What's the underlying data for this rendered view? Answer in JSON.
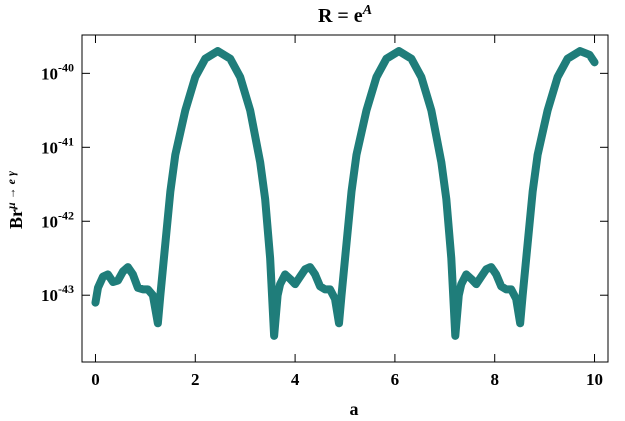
{
  "chart_data": {
    "type": "line",
    "title": "R = e",
    "title_superscript": "A",
    "x_label": "a",
    "y_label": "Br",
    "y_label_superscript": "μ → e γ",
    "color": "#1f7d7a",
    "log_y": true,
    "xlim": [
      -0.27,
      10.27
    ],
    "ylim": [
      1.25e-44,
      3.3e-40
    ],
    "xticks": [
      0,
      2,
      4,
      6,
      8,
      10
    ],
    "yticks": [
      {
        "value": 1e-43,
        "label": "10",
        "sup": "-43"
      },
      {
        "value": 1e-42,
        "label": "10",
        "sup": "-42"
      },
      {
        "value": 1e-41,
        "label": "10",
        "sup": "-41"
      },
      {
        "value": 1e-40,
        "label": "10",
        "sup": "-40"
      }
    ],
    "x": [
      0,
      0.05,
      0.15,
      0.25,
      0.35,
      0.45,
      0.55,
      0.65,
      0.75,
      0.85,
      0.95,
      1.05,
      1.15,
      1.25,
      1.3,
      1.4,
      1.5,
      1.6,
      1.8,
      2.0,
      2.2,
      2.45,
      2.7,
      2.9,
      3.1,
      3.3,
      3.4,
      3.5,
      3.58,
      3.65,
      3.7,
      3.8,
      3.9,
      4.0,
      4.1,
      4.2,
      4.3,
      4.4,
      4.5,
      4.6,
      4.7,
      4.8,
      4.88,
      4.93,
      5.03,
      5.13,
      5.23,
      5.43,
      5.63,
      5.83,
      6.08,
      6.33,
      6.53,
      6.73,
      6.93,
      7.03,
      7.13,
      7.21,
      7.28,
      7.33,
      7.43,
      7.53,
      7.63,
      7.73,
      7.83,
      7.93,
      8.03,
      8.13,
      8.23,
      8.33,
      8.43,
      8.51,
      8.56,
      8.66,
      8.76,
      8.86,
      9.06,
      9.26,
      9.46,
      9.71,
      9.9,
      10.0
    ],
    "values": [
      7.94e-44,
      1.26e-43,
      1.78e-43,
      1.91e-43,
      1.51e-43,
      1.58e-43,
      2.09e-43,
      2.4e-43,
      1.91e-43,
      1.26e-43,
      1.2e-43,
      1.2e-43,
      1e-43,
      4.17e-44,
      1e-43,
      5.01e-43,
      2.51e-42,
      7.94e-42,
      3.16e-41,
      8.91e-41,
      1.58e-40,
      2e-40,
      1.58e-40,
      8.91e-41,
      3.16e-41,
      6.31e-42,
      2e-42,
      3.16e-43,
      2.82e-44,
      1e-43,
      1.41e-43,
      1.91e-43,
      1.66e-43,
      1.41e-43,
      1.78e-43,
      2.24e-43,
      2.4e-43,
      1.91e-43,
      1.32e-43,
      1.2e-43,
      1.2e-43,
      8.91e-44,
      4.17e-44,
      1e-43,
      5.01e-43,
      2.51e-42,
      7.94e-42,
      3.16e-41,
      8.91e-41,
      1.58e-40,
      2e-40,
      1.58e-40,
      8.91e-41,
      3.16e-41,
      6.31e-42,
      2e-42,
      3.16e-43,
      2.82e-44,
      1e-43,
      1.41e-43,
      1.91e-43,
      1.66e-43,
      1.41e-43,
      1.78e-43,
      2.24e-43,
      2.4e-43,
      1.91e-43,
      1.32e-43,
      1.2e-43,
      1.2e-43,
      8.91e-44,
      4.17e-44,
      1e-43,
      5.01e-43,
      2.51e-42,
      7.94e-42,
      3.16e-41,
      8.91e-41,
      1.58e-40,
      2e-40,
      1.78e-40,
      1.41e-40
    ]
  }
}
